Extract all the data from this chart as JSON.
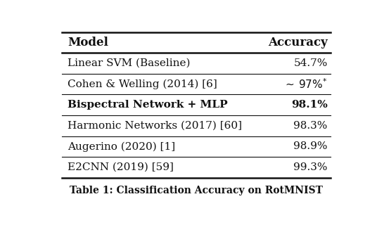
{
  "col_headers": [
    "Model",
    "Accuracy"
  ],
  "rows": [
    [
      "Linear SVM (Baseline)",
      "54.7%"
    ],
    [
      "Cohen & Welling (2014) [6]",
      "~97%*"
    ],
    [
      "Bispectral Network + MLP",
      "98.1%"
    ],
    [
      "Harmonic Networks (2017) [60]",
      "98.3%"
    ],
    [
      "Augerino (2020) [1]",
      "98.9%"
    ],
    [
      "E2CNN (2019) [59]",
      "99.3%"
    ]
  ],
  "bold_rows": [
    2
  ],
  "bg_color": "#ffffff",
  "line_color": "#111111",
  "text_color": "#111111",
  "caption": "Table 1: Classification Accuracy on RotMNIST",
  "header_fontsize": 12,
  "row_fontsize": 11,
  "caption_fontsize": 10,
  "lw_thick": 1.8,
  "lw_thin": 0.8
}
